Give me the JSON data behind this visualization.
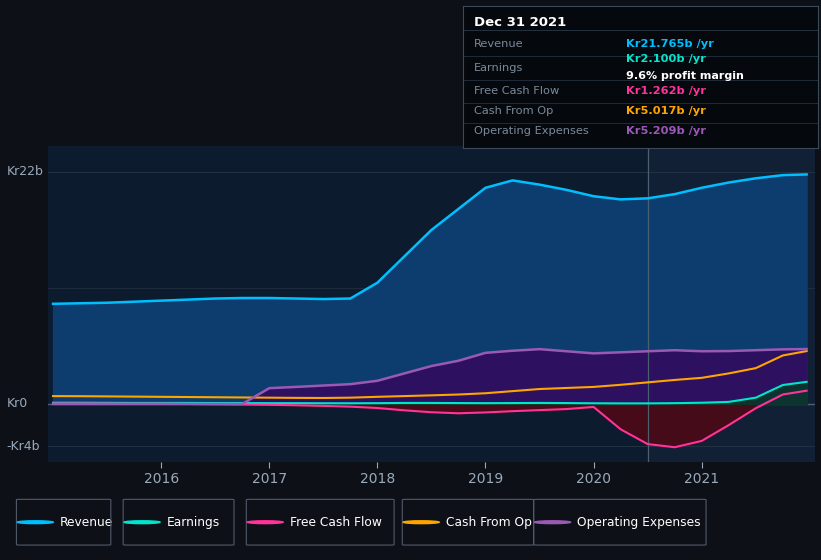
{
  "background_color": "#0d1117",
  "plot_bg_color": "#0d1b2e",
  "years": [
    2015.0,
    2015.25,
    2015.5,
    2015.75,
    2016.0,
    2016.25,
    2016.5,
    2016.75,
    2017.0,
    2017.25,
    2017.5,
    2017.75,
    2018.0,
    2018.25,
    2018.5,
    2018.75,
    2019.0,
    2019.25,
    2019.5,
    2019.75,
    2020.0,
    2020.25,
    2020.5,
    2020.75,
    2021.0,
    2021.25,
    2021.5,
    2021.75,
    2021.97
  ],
  "revenue": [
    9.5,
    9.55,
    9.6,
    9.7,
    9.8,
    9.9,
    10.0,
    10.05,
    10.05,
    10.0,
    9.95,
    10.0,
    11.5,
    14.0,
    16.5,
    18.5,
    20.5,
    21.2,
    20.8,
    20.3,
    19.7,
    19.4,
    19.5,
    19.9,
    20.5,
    21.0,
    21.4,
    21.7,
    21.765
  ],
  "earnings": [
    0.12,
    0.12,
    0.11,
    0.1,
    0.1,
    0.1,
    0.09,
    0.09,
    0.08,
    0.08,
    0.07,
    0.07,
    0.08,
    0.1,
    0.1,
    0.09,
    0.08,
    0.09,
    0.1,
    0.09,
    0.07,
    0.06,
    0.06,
    0.08,
    0.12,
    0.2,
    0.6,
    1.8,
    2.1
  ],
  "free_cash_flow": [
    0.04,
    0.04,
    0.03,
    0.02,
    0.02,
    0.0,
    -0.03,
    -0.05,
    -0.08,
    -0.12,
    -0.18,
    -0.25,
    -0.38,
    -0.6,
    -0.78,
    -0.88,
    -0.8,
    -0.68,
    -0.58,
    -0.48,
    -0.28,
    -2.4,
    -3.8,
    -4.1,
    -3.5,
    -2.0,
    -0.4,
    0.9,
    1.262
  ],
  "cash_from_op": [
    0.75,
    0.74,
    0.72,
    0.7,
    0.68,
    0.66,
    0.64,
    0.62,
    0.6,
    0.58,
    0.57,
    0.6,
    0.68,
    0.75,
    0.82,
    0.9,
    1.02,
    1.22,
    1.42,
    1.52,
    1.62,
    1.82,
    2.05,
    2.28,
    2.48,
    2.9,
    3.4,
    4.6,
    5.017
  ],
  "operating_expenses": [
    0.0,
    0.0,
    0.0,
    0.0,
    0.0,
    0.0,
    0.0,
    0.0,
    1.5,
    1.62,
    1.75,
    1.88,
    2.2,
    2.9,
    3.6,
    4.1,
    4.85,
    5.05,
    5.2,
    5.0,
    4.8,
    4.9,
    5.0,
    5.1,
    5.0,
    5.02,
    5.1,
    5.18,
    5.209
  ],
  "revenue_color": "#00bfff",
  "earnings_color": "#00e5cc",
  "free_cash_flow_color": "#ff3399",
  "cash_from_op_color": "#ffa500",
  "operating_expenses_color": "#9b59b6",
  "revenue_fill": "#0d3d6e",
  "op_exp_fill": "#2d1060",
  "fcf_neg_fill": "#4a0a18",
  "ylabel_top": "Kr22b",
  "ylabel_mid": "Kr0",
  "ylabel_bot": "-Kr4b",
  "ylim": [
    -5.5,
    24.5
  ],
  "xlim": [
    2014.95,
    2022.05
  ],
  "xticks": [
    2016,
    2017,
    2018,
    2019,
    2020,
    2021
  ],
  "shade_from": 2020.5,
  "info_rows": [
    {
      "label": "Revenue",
      "value": "Kr21.765b /yr",
      "color": "#00bfff",
      "extra": null
    },
    {
      "label": "Earnings",
      "value": "Kr2.100b /yr",
      "color": "#00e5cc",
      "extra": "9.6% profit margin"
    },
    {
      "label": "Free Cash Flow",
      "value": "Kr1.262b /yr",
      "color": "#ff3399",
      "extra": null
    },
    {
      "label": "Cash From Op",
      "value": "Kr5.017b /yr",
      "color": "#ffa500",
      "extra": null
    },
    {
      "label": "Operating Expenses",
      "value": "Kr5.209b /yr",
      "color": "#9b59b6",
      "extra": null
    }
  ],
  "info_date": "Dec 31 2021",
  "legend_items": [
    {
      "label": "Revenue",
      "color": "#00bfff"
    },
    {
      "label": "Earnings",
      "color": "#00e5cc"
    },
    {
      "label": "Free Cash Flow",
      "color": "#ff3399"
    },
    {
      "label": "Cash From Op",
      "color": "#ffa500"
    },
    {
      "label": "Operating Expenses",
      "color": "#9b59b6"
    }
  ]
}
